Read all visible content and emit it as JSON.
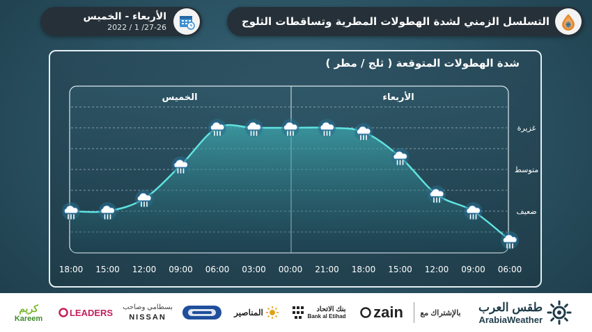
{
  "header": {
    "title": "التسلسل الزمني لشدة الهطولات المطرية وتساقطات الثلوج",
    "title_icon": "rain-snow-drop-icon",
    "days": "الأربعاء - الخميس",
    "date": "2022 / 1 /27-26",
    "date_icon": "calendar-clock-icon"
  },
  "chart_data": {
    "type": "line",
    "title": "شدة الهطولات المتوقعة ( ثلج / مطر )",
    "categories": [
      "06:00",
      "09:00",
      "12:00",
      "15:00",
      "18:00",
      "21:00",
      "00:00",
      "03:00",
      "06:00",
      "09:00",
      "12:00",
      "15:00",
      "18:00"
    ],
    "series": [
      {
        "values": [
          0.3,
          1,
          1.4,
          2.3,
          2.9,
          3,
          3,
          3,
          3,
          2.1,
          1.3,
          1,
          1
        ]
      }
    ],
    "y_levels": [
      "ضعيف",
      "متوسط",
      "غزيرة"
    ],
    "day_labels": [
      "الأربعاء",
      "الخميس"
    ],
    "y_range": [
      0,
      4
    ],
    "x_direction": "right-to-left",
    "grid": true,
    "marker": "cloud-rain-icon",
    "line_color": "#5fe3df"
  },
  "footer": {
    "brand_ar": "طقس العرب",
    "brand_en": "ArabiaWeather",
    "partnership": "بالإشتراك مع",
    "sponsors": [
      "zain",
      "بنك الاتحاد",
      "Bank al Etihad",
      "المناصير",
      "NISSAN",
      "بسطامي وصاحب",
      "LEADERS",
      "كريم",
      "Kareem"
    ]
  },
  "colors": {
    "accent": "#5fe3df",
    "pill_bg": "#263038",
    "footer_bg": "#ffffff"
  }
}
